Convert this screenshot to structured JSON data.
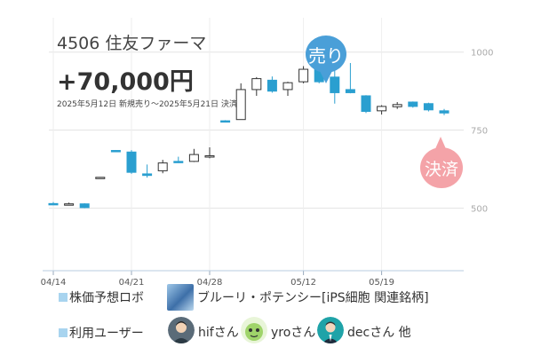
{
  "header": {
    "title": "4506 住友ファーマ",
    "profit": "+70,000円",
    "period": "2025年5月12日 新規売り〜2025年5月21日 決済"
  },
  "badges": {
    "sell": "売り",
    "settle": "決済"
  },
  "info": {
    "robot_label": "株価予想ロボ",
    "robot_name": "ブルーリ・ポテンシー[iPS細胞 関連銘柄]",
    "users_label": "利用ユーザー",
    "users": [
      "hifさん",
      "yroさん",
      "decさん"
    ],
    "users_suffix": "他"
  },
  "colors": {
    "up": "#ffffff",
    "down": "#2a9fd0",
    "sell_badge": "#4a9fd8",
    "settle_badge": "#f4a3a8"
  },
  "chart_data": {
    "type": "candlestick",
    "x_tick_labels": [
      "04/14",
      "04/21",
      "04/28",
      "05/12",
      "05/19"
    ],
    "y_ticks": [
      500,
      750,
      1000
    ],
    "ylim": [
      300,
      1110
    ],
    "grid": true,
    "candles": [
      {
        "date": "04/14",
        "open": 515,
        "high": 520,
        "low": 510,
        "close": 512
      },
      {
        "date": "04/15",
        "open": 512,
        "high": 518,
        "low": 510,
        "close": 514
      },
      {
        "date": "04/16",
        "open": 514,
        "high": 516,
        "low": 500,
        "close": 502
      },
      {
        "date": "04/17",
        "open": 598,
        "high": 600,
        "low": 596,
        "close": 599
      },
      {
        "date": "04/18",
        "open": 685,
        "high": 686,
        "low": 682,
        "close": 684
      },
      {
        "date": "04/21",
        "open": 680,
        "high": 686,
        "low": 610,
        "close": 615
      },
      {
        "date": "04/22",
        "open": 610,
        "high": 640,
        "low": 598,
        "close": 605
      },
      {
        "date": "04/23",
        "open": 620,
        "high": 655,
        "low": 612,
        "close": 645
      },
      {
        "date": "04/24",
        "open": 650,
        "high": 665,
        "low": 645,
        "close": 648
      },
      {
        "date": "04/25",
        "open": 650,
        "high": 690,
        "low": 648,
        "close": 672
      },
      {
        "date": "04/28",
        "open": 668,
        "high": 695,
        "low": 660,
        "close": 668
      },
      {
        "date": "05/01",
        "open": 780,
        "high": 782,
        "low": 776,
        "close": 778
      },
      {
        "date": "05/02",
        "open": 784,
        "high": 900,
        "low": 784,
        "close": 880
      },
      {
        "date": "05/07",
        "open": 880,
        "high": 920,
        "low": 860,
        "close": 915
      },
      {
        "date": "05/08",
        "open": 910,
        "high": 922,
        "low": 870,
        "close": 875
      },
      {
        "date": "05/09",
        "open": 880,
        "high": 905,
        "low": 860,
        "close": 902
      },
      {
        "date": "05/12",
        "open": 905,
        "high": 955,
        "low": 900,
        "close": 945
      },
      {
        "date": "05/13",
        "open": 970,
        "high": 978,
        "low": 900,
        "close": 905
      },
      {
        "date": "05/14",
        "open": 920,
        "high": 1040,
        "low": 835,
        "close": 870
      },
      {
        "date": "05/15",
        "open": 880,
        "high": 965,
        "low": 868,
        "close": 870
      },
      {
        "date": "05/16",
        "open": 860,
        "high": 862,
        "low": 805,
        "close": 810
      },
      {
        "date": "05/19",
        "open": 812,
        "high": 830,
        "low": 800,
        "close": 826
      },
      {
        "date": "05/20",
        "open": 825,
        "high": 840,
        "low": 818,
        "close": 832
      },
      {
        "date": "05/21",
        "open": 840,
        "high": 842,
        "low": 822,
        "close": 826
      },
      {
        "date": "05/22",
        "open": 835,
        "high": 838,
        "low": 810,
        "close": 815
      },
      {
        "date": "05/23",
        "open": 812,
        "high": 818,
        "low": 798,
        "close": 805
      }
    ],
    "markers": [
      {
        "label": "売り",
        "date": "05/12"
      },
      {
        "label": "決済",
        "date": "05/21"
      }
    ]
  }
}
